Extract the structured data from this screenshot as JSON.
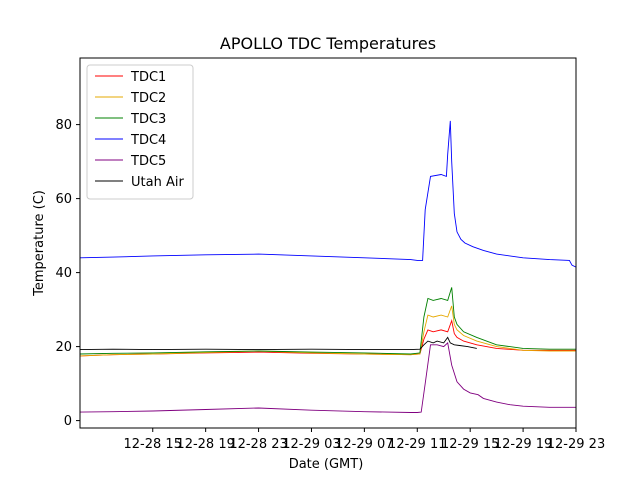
{
  "chart_data": {
    "type": "line",
    "title": "APOLLO TDC Temperatures",
    "xlabel": "Date (GMT)",
    "ylabel": "Temperature (C)",
    "xlim": [
      9.5,
      47
    ],
    "ylim": [
      -2,
      98
    ],
    "grid": false,
    "legend_position": "top-left",
    "x_units": "hours since 12-28 00:00 GMT",
    "x_ticks": [
      {
        "value": 15,
        "label": "12-28 15"
      },
      {
        "value": 19,
        "label": "12-28 19"
      },
      {
        "value": 23,
        "label": "12-28 23"
      },
      {
        "value": 27,
        "label": "12-29 03"
      },
      {
        "value": 31,
        "label": "12-29 07"
      },
      {
        "value": 35,
        "label": "12-29 11"
      },
      {
        "value": 39,
        "label": "12-29 15"
      },
      {
        "value": 43,
        "label": "12-29 19"
      },
      {
        "value": 47,
        "label": "12-29 23"
      }
    ],
    "y_ticks": [
      {
        "value": 0,
        "label": "0"
      },
      {
        "value": 20,
        "label": "20"
      },
      {
        "value": 40,
        "label": "40"
      },
      {
        "value": 60,
        "label": "60"
      },
      {
        "value": 80,
        "label": "80"
      }
    ],
    "series": [
      {
        "name": "TDC1",
        "color": "#ff0000",
        "x": [
          9.5,
          12,
          15,
          19,
          23,
          27,
          31,
          34.5,
          35.2,
          35.5,
          35.8,
          36.2,
          36.8,
          37.3,
          37.6,
          37.8,
          38.0,
          38.5,
          39.5,
          41,
          43,
          45,
          47
        ],
        "y": [
          17.5,
          17.8,
          18.0,
          18.3,
          18.5,
          18.2,
          18.0,
          17.8,
          18.0,
          22,
          24.5,
          24.0,
          24.5,
          24.0,
          27.0,
          23.5,
          22.5,
          21.5,
          20.5,
          19.5,
          19.0,
          19.0,
          19.0
        ]
      },
      {
        "name": "TDC2",
        "color": "#e6a800",
        "x": [
          9.5,
          12,
          15,
          19,
          23,
          27,
          31,
          34.5,
          35.2,
          35.5,
          35.8,
          36.2,
          36.8,
          37.3,
          37.6,
          37.8,
          38.0,
          38.5,
          39.5,
          41,
          43,
          45,
          47
        ],
        "y": [
          17.5,
          17.8,
          18.0,
          18.4,
          18.8,
          18.3,
          18.0,
          17.8,
          18.0,
          24,
          28.5,
          28.0,
          28.5,
          28.0,
          31.0,
          26.0,
          24.5,
          23.0,
          21.5,
          20.0,
          19.0,
          18.8,
          18.8
        ]
      },
      {
        "name": "TDC3",
        "color": "#008000",
        "x": [
          9.5,
          12,
          15,
          19,
          23,
          27,
          31,
          34.5,
          35.2,
          35.5,
          35.8,
          36.2,
          36.8,
          37.3,
          37.6,
          37.8,
          38.0,
          38.5,
          39.5,
          41,
          43,
          45,
          47
        ],
        "y": [
          18.0,
          18.2,
          18.3,
          18.6,
          18.8,
          18.5,
          18.3,
          18.0,
          18.3,
          28,
          33.0,
          32.5,
          33.0,
          32.5,
          36.0,
          28.0,
          26.0,
          24.0,
          22.5,
          20.5,
          19.5,
          19.3,
          19.3
        ]
      },
      {
        "name": "TDC4",
        "color": "#0000ff",
        "x": [
          9.5,
          12,
          15,
          19,
          23,
          27,
          31,
          34.5,
          35.0,
          35.4,
          35.6,
          36.0,
          36.8,
          37.2,
          37.3,
          37.5,
          37.6,
          37.8,
          38.0,
          38.3,
          38.6,
          39.2,
          40,
          41,
          43,
          45,
          46.5,
          46.7,
          47
        ],
        "y": [
          44.0,
          44.2,
          44.5,
          44.8,
          45.0,
          44.5,
          44.0,
          43.5,
          43.3,
          43.3,
          57.0,
          66.0,
          66.5,
          66.0,
          72.0,
          81.0,
          70.0,
          56.0,
          51.0,
          49.0,
          48.0,
          47.0,
          46.0,
          45.0,
          44.0,
          43.5,
          43.3,
          42.0,
          41.5
        ]
      },
      {
        "name": "TDC5",
        "color": "#800080",
        "x": [
          9.5,
          12,
          15,
          19,
          23,
          27,
          31,
          34.5,
          35.0,
          35.3,
          35.6,
          36.0,
          36.5,
          37.0,
          37.3,
          37.6,
          38.0,
          38.5,
          39.0,
          39.6,
          40,
          41,
          42,
          43,
          45,
          47
        ],
        "y": [
          2.3,
          2.4,
          2.6,
          3.0,
          3.4,
          2.8,
          2.4,
          2.2,
          2.2,
          2.3,
          10.0,
          20.5,
          20.5,
          20.0,
          21.0,
          15.0,
          10.5,
          8.5,
          7.5,
          7.0,
          6.0,
          5.0,
          4.3,
          3.9,
          3.6,
          3.6
        ]
      },
      {
        "name": "Utah Air",
        "color": "#000000",
        "x": [
          9.5,
          12,
          15,
          19,
          23,
          27,
          31,
          34.5,
          35.2,
          35.5,
          35.8,
          36.2,
          36.5,
          37.0,
          37.3,
          37.5,
          37.8,
          38.2,
          38.8,
          39.5
        ],
        "y": [
          19.2,
          19.3,
          19.2,
          19.3,
          19.2,
          19.3,
          19.2,
          19.2,
          19.3,
          20.5,
          21.5,
          21.0,
          21.5,
          21.0,
          22.5,
          21.0,
          20.5,
          20.3,
          20.0,
          19.5
        ]
      }
    ]
  }
}
